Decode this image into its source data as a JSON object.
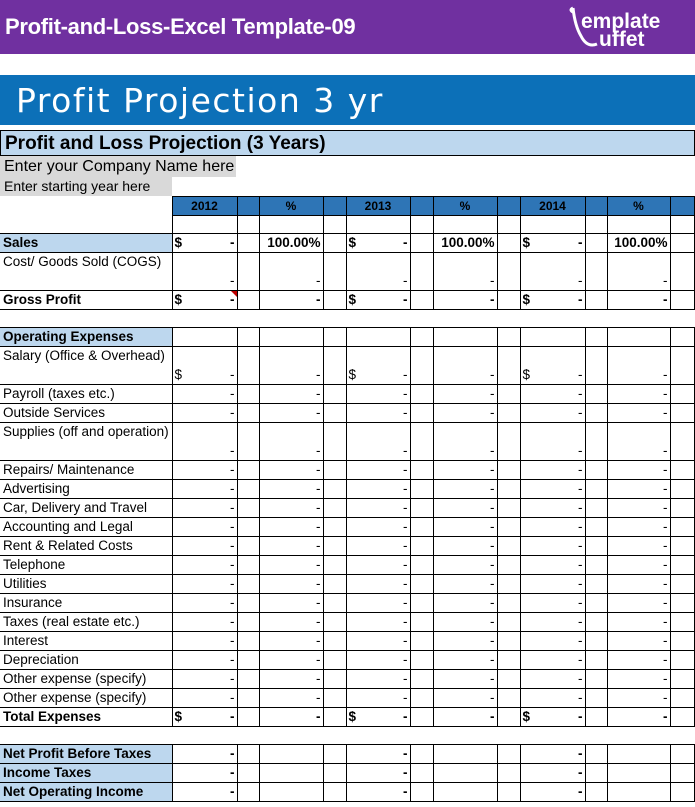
{
  "header": {
    "title": "Profit-and-Loss-Excel Template-09",
    "logo_text": "Template Buffet",
    "bg": "#7030a0"
  },
  "banner": {
    "title": "Profit Projection 3 yr",
    "bg": "#0c70b8"
  },
  "sheet": {
    "title": "Profit and Loss Projection (3 Years)",
    "company_placeholder": "Enter your Company Name here",
    "start_year_placeholder": "Enter starting year here",
    "columns": [
      "2012",
      "%",
      "2013",
      "%",
      "2014",
      "%"
    ],
    "rows": [
      {
        "label": "",
        "kind": "blank-grid"
      },
      {
        "label": "Sales",
        "kind": "bold-blue",
        "dollar": true,
        "vals": [
          "-",
          "100.00%",
          "-",
          "100.00%",
          "-",
          "100.00%"
        ]
      },
      {
        "label": "Cost/ Goods Sold (COGS)",
        "tall": true,
        "vals": [
          "-",
          "-",
          "-",
          "-",
          "-",
          "-"
        ]
      },
      {
        "label": "Gross Profit",
        "kind": "bold",
        "dollar": true,
        "vals": [
          "-",
          "-",
          "-",
          "-",
          "-",
          "-"
        ]
      },
      {
        "label": "",
        "kind": "spacer"
      },
      {
        "label": "Operating Expenses",
        "kind": "bold-blue",
        "vals": [
          "",
          "",
          "",
          "",
          "",
          ""
        ]
      },
      {
        "label": "Salary (Office & Overhead)",
        "tall": true,
        "dollar": true,
        "vals": [
          "-",
          "-",
          "-",
          "-",
          "-",
          "-"
        ]
      },
      {
        "label": "Payroll (taxes etc.)",
        "vals": [
          "-",
          "-",
          "-",
          "-",
          "-",
          "-"
        ]
      },
      {
        "label": "Outside Services",
        "vals": [
          "-",
          "-",
          "-",
          "-",
          "-",
          "-"
        ]
      },
      {
        "label": "Supplies (off and operation)",
        "tall": true,
        "vals": [
          "-",
          "-",
          "-",
          "-",
          "-",
          "-"
        ]
      },
      {
        "label": "Repairs/ Maintenance",
        "vals": [
          "-",
          "-",
          "-",
          "-",
          "-",
          "-"
        ]
      },
      {
        "label": "Advertising",
        "vals": [
          "-",
          "-",
          "-",
          "-",
          "-",
          "-"
        ]
      },
      {
        "label": "Car, Delivery and Travel",
        "vals": [
          "-",
          "-",
          "-",
          "-",
          "-",
          "-"
        ]
      },
      {
        "label": "Accounting and Legal",
        "vals": [
          "-",
          "-",
          "-",
          "-",
          "-",
          "-"
        ]
      },
      {
        "label": "Rent & Related Costs",
        "vals": [
          "-",
          "-",
          "-",
          "-",
          "-",
          "-"
        ]
      },
      {
        "label": "Telephone",
        "vals": [
          "-",
          "-",
          "-",
          "-",
          "-",
          "-"
        ]
      },
      {
        "label": "Utilities",
        "vals": [
          "-",
          "-",
          "-",
          "-",
          "-",
          "-"
        ]
      },
      {
        "label": "Insurance",
        "vals": [
          "-",
          "-",
          "-",
          "-",
          "-",
          "-"
        ]
      },
      {
        "label": "Taxes (real estate etc.)",
        "vals": [
          "-",
          "-",
          "-",
          "-",
          "-",
          "-"
        ]
      },
      {
        "label": "Interest",
        "vals": [
          "-",
          "-",
          "-",
          "-",
          "-",
          "-"
        ]
      },
      {
        "label": "Depreciation",
        "vals": [
          "-",
          "-",
          "-",
          "-",
          "-",
          "-"
        ]
      },
      {
        "label": "Other expense (specify)",
        "vals": [
          "-",
          "-",
          "-",
          "-",
          "-",
          "-"
        ]
      },
      {
        "label": "Other expense (specify)",
        "vals": [
          "-",
          "-",
          "-",
          "-",
          "-",
          "-"
        ]
      },
      {
        "label": "Total Expenses",
        "kind": "bold",
        "dollar": true,
        "vals": [
          "-",
          "-",
          "-",
          "-",
          "-",
          "-"
        ]
      },
      {
        "label": "",
        "kind": "spacer"
      },
      {
        "label": "Net Profit Before Taxes",
        "kind": "bold-blue",
        "vals": [
          "-",
          "",
          "-",
          "",
          "-",
          ""
        ]
      },
      {
        "label": "Income Taxes",
        "kind": "bold-blue",
        "vals": [
          "-",
          "",
          "-",
          "",
          "-",
          ""
        ]
      },
      {
        "label": "Net Operating Income",
        "kind": "bold-blue",
        "vals": [
          "-",
          "",
          "-",
          "",
          "-",
          ""
        ]
      }
    ]
  }
}
